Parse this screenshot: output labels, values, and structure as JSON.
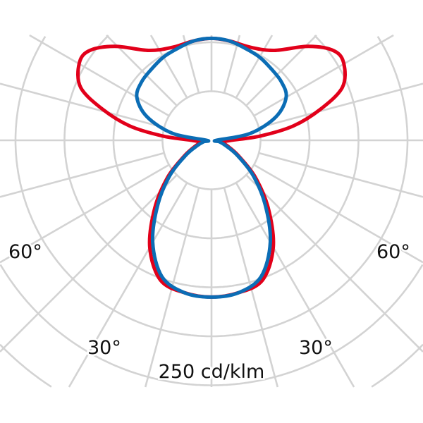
{
  "chart_data": {
    "type": "polar",
    "angle_convention": "0° pointing down, symmetric about the vertical axis",
    "ring_step": 50,
    "angle_labels": {
      "left_60": "60°",
      "right_60": "60°",
      "left_30": "30°",
      "right_30": "30°"
    },
    "unit_label": "250 cd/klm",
    "grid": true,
    "spoke_step_deg": 15,
    "series": [
      {
        "color": "#e2001a",
        "angles": [
          0,
          10,
          20,
          30,
          40,
          50,
          60,
          70,
          80,
          90,
          95,
          100,
          106,
          112,
          120,
          126,
          134,
          145,
          157,
          170,
          180
        ],
        "values": [
          160,
          158,
          152,
          126,
          90,
          58,
          32,
          18,
          12,
          20,
          50,
          85,
          116,
          144,
          156,
          155,
          138,
          112,
          103,
          103,
          104
        ]
      },
      {
        "color": "#0b6db5",
        "angles": [
          0,
          10,
          20,
          30,
          40,
          50,
          60,
          70,
          80,
          90,
          100,
          110,
          120,
          130,
          140,
          150,
          160,
          170,
          180
        ],
        "values": [
          160,
          158,
          148,
          120,
          85,
          55,
          30,
          15,
          8,
          5,
          40,
          70,
          88,
          93,
          95,
          98,
          100,
          103,
          104
        ]
      }
    ]
  }
}
